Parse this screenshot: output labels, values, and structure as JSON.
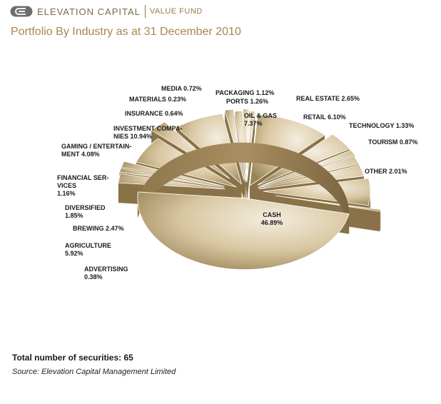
{
  "header": {
    "brand_name": "ELEVATION CAPITAL",
    "fund_name": "VALUE FUND",
    "logo_icon": "elevation-e-logo-icon"
  },
  "colors": {
    "brand": "#7a6a4a",
    "accent": "#a8874f",
    "slice_light": "#f4eedf",
    "slice_mid": "#d8c6a0",
    "slice_dark": "#9b8558",
    "slice_side": "#a88e60"
  },
  "chart_data": {
    "type": "pie",
    "title": "Portfolio By Industry as at 31 December 2010",
    "unit": "%",
    "slices": [
      {
        "label": "CASH",
        "value": 46.89,
        "display": "46.89%"
      },
      {
        "label": "ADVERTISING",
        "value": 0.38,
        "display": "0.38%"
      },
      {
        "label": "AGRICULTURE",
        "value": 5.92,
        "display": "5.92%"
      },
      {
        "label": "BREWING",
        "value": 2.47,
        "display": "2.47%"
      },
      {
        "label": "DIVERSIFIED",
        "value": 1.85,
        "display": "1.85%"
      },
      {
        "label": "FINANCIAL SERVICES",
        "value": 1.16,
        "display": "1.16%"
      },
      {
        "label": "GAMING / ENTERTAINMENT",
        "value": 4.08,
        "display": "4.08%"
      },
      {
        "label": "INVESTMENT COMPANIES",
        "value": 10.94,
        "display": "10.94%"
      },
      {
        "label": "INSURANCE",
        "value": 0.64,
        "display": "0.64%"
      },
      {
        "label": "MATERIALS",
        "value": 0.23,
        "display": "0.23%"
      },
      {
        "label": "MEDIA",
        "value": 0.72,
        "display": "0.72%"
      },
      {
        "label": "PACKAGING",
        "value": 1.12,
        "display": "1.12%"
      },
      {
        "label": "PORTS",
        "value": 1.26,
        "display": "1.26%"
      },
      {
        "label": "OIL & GAS",
        "value": 7.37,
        "display": "7.37%"
      },
      {
        "label": "REAL ESTATE",
        "value": 2.65,
        "display": "2.65%"
      },
      {
        "label": "RETAIL",
        "value": 6.1,
        "display": "6.10%"
      },
      {
        "label": "TECHNOLOGY",
        "value": 1.33,
        "display": "1.33%"
      },
      {
        "label": "TOURISM",
        "value": 0.87,
        "display": "0.87%"
      },
      {
        "label": "OTHER",
        "value": 2.01,
        "display": "2.01%"
      }
    ],
    "labels": [
      {
        "name": "slice-label-cash",
        "lines": [
          "CASH",
          "46.89%"
        ]
      },
      {
        "name": "slice-label-advertising",
        "lines": [
          "ADVERTISING",
          "0.38%"
        ]
      },
      {
        "name": "slice-label-agriculture",
        "lines": [
          "AGRICULTURE",
          "5.92%"
        ]
      },
      {
        "name": "slice-label-brewing",
        "lines": [
          "BREWING 2.47%"
        ]
      },
      {
        "name": "slice-label-diversified",
        "lines": [
          "DIVERSIFIED",
          "1.85%"
        ]
      },
      {
        "name": "slice-label-financial-services",
        "lines": [
          "FINANCIAL SER-",
          "VICES",
          "1.16%"
        ]
      },
      {
        "name": "slice-label-gaming",
        "lines": [
          "GAMING / ENTERTAIN-",
          "MENT 4.08%"
        ]
      },
      {
        "name": "slice-label-investment",
        "lines": [
          "INVESTMENT COMPA-",
          "NIES 10.94%"
        ]
      },
      {
        "name": "slice-label-insurance",
        "lines": [
          "INSURANCE 0.64%"
        ]
      },
      {
        "name": "slice-label-materials",
        "lines": [
          "MATERIALS 0.23%"
        ]
      },
      {
        "name": "slice-label-media",
        "lines": [
          "MEDIA 0.72%"
        ]
      },
      {
        "name": "slice-label-packaging",
        "lines": [
          "PACKAGING 1.12%"
        ]
      },
      {
        "name": "slice-label-ports",
        "lines": [
          "PORTS 1.26%"
        ]
      },
      {
        "name": "slice-label-oil-gas",
        "lines": [
          "OIL & GAS",
          "7.37%"
        ]
      },
      {
        "name": "slice-label-real-estate",
        "lines": [
          "REAL ESTATE 2.65%"
        ]
      },
      {
        "name": "slice-label-retail",
        "lines": [
          "RETAIL 6.10%"
        ]
      },
      {
        "name": "slice-label-technology",
        "lines": [
          "TECHNOLOGY 1.33%"
        ]
      },
      {
        "name": "slice-label-tourism",
        "lines": [
          "TOURISM 0.87%"
        ]
      },
      {
        "name": "slice-label-other",
        "lines": [
          "OTHER 2.01%"
        ]
      }
    ],
    "style": "3d-exploded",
    "legend": "none"
  },
  "footer": {
    "count_text": "Total number of securities: 65",
    "source_text": "Source: Elevation Capital Management Limited"
  }
}
